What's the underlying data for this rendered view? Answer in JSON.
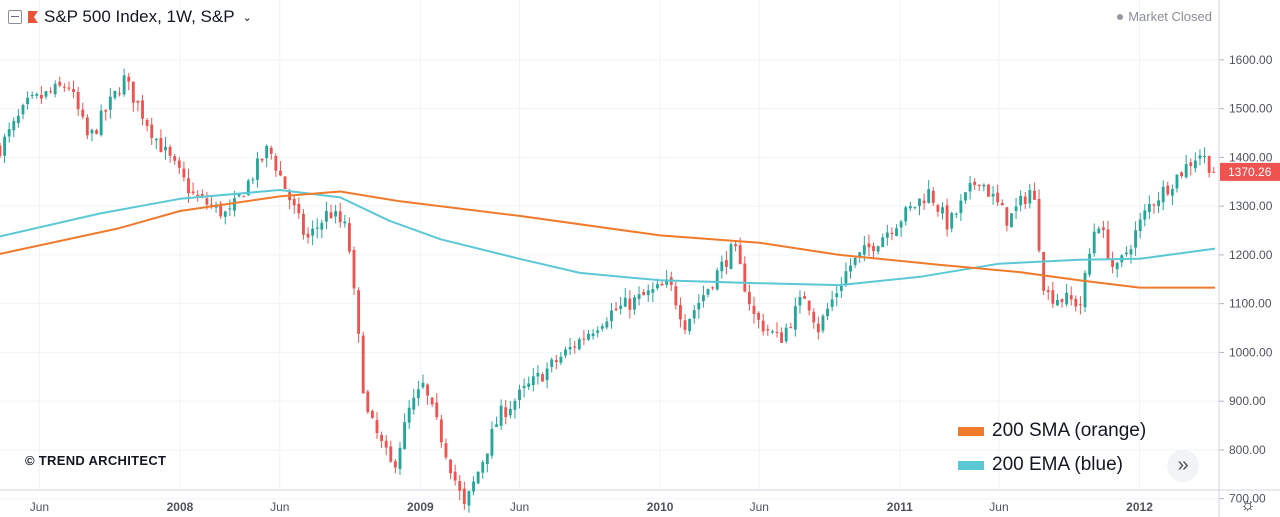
{
  "header": {
    "symbol_title": "S&P 500 Index, 1W, S&P",
    "chevron": "⌄"
  },
  "status": {
    "market_status": "Market Closed"
  },
  "watermark": "© TREND ARCHITECT",
  "legend": [
    {
      "label": "200 SMA (orange)",
      "color": "#f07a2b"
    },
    {
      "label": "200 EMA (blue)",
      "color": "#5bc8d5"
    }
  ],
  "controls": {
    "forward_icon": "»",
    "settings_icon": "☼"
  },
  "colors": {
    "up": "#26a69a",
    "down": "#ef5350",
    "sma": "#f07a2b",
    "ema": "#5bc8d5",
    "grid": "#f0f3fa",
    "price_label_bg": "#ef5350"
  },
  "chart_data": {
    "type": "candlestick",
    "title": "S&P 500 Index, 1W, S&P",
    "y_axis": {
      "ticks": [
        "700.00",
        "800.00",
        "900.00",
        "1000.00",
        "1100.00",
        "1200.00",
        "1300.00",
        "1400.00",
        "1500.00",
        "1600.00"
      ],
      "range": [
        650,
        1610
      ]
    },
    "x_axis": {
      "labels": [
        "Jun",
        "2008",
        "Jun",
        "2009",
        "Jun",
        "2010",
        "Jun",
        "2011",
        "Jun",
        "2012"
      ],
      "range": [
        "2007-04-02",
        "2012-05-01"
      ]
    },
    "x_label_dates": [
      "2007-06-01",
      "2008-01-01",
      "2008-06-01",
      "2009-01-01",
      "2009-06-01",
      "2010-01-01",
      "2010-06-01",
      "2011-01-01",
      "2011-06-01",
      "2012-01-01"
    ],
    "last_price": {
      "label": "1370.26",
      "value": 1370.26
    },
    "price_path": [
      [
        "2007-04-02",
        1420
      ],
      [
        "2007-05-15",
        1510
      ],
      [
        "2007-07-15",
        1550
      ],
      [
        "2007-08-15",
        1435
      ],
      [
        "2007-10-08",
        1560
      ],
      [
        "2007-11-25",
        1440
      ],
      [
        "2008-01-22",
        1320
      ],
      [
        "2008-03-15",
        1280
      ],
      [
        "2008-05-15",
        1420
      ],
      [
        "2008-07-12",
        1230
      ],
      [
        "2008-08-15",
        1290
      ],
      [
        "2008-09-12",
        1250
      ],
      [
        "2008-10-10",
        880
      ],
      [
        "2008-11-20",
        760
      ],
      [
        "2008-12-15",
        880
      ],
      [
        "2009-01-05",
        930
      ],
      [
        "2009-02-01",
        830
      ],
      [
        "2009-03-09",
        680
      ],
      [
        "2009-05-01",
        870
      ],
      [
        "2009-06-15",
        930
      ],
      [
        "2009-08-15",
        1005
      ],
      [
        "2009-10-15",
        1080
      ],
      [
        "2010-01-15",
        1140
      ],
      [
        "2010-02-08",
        1060
      ],
      [
        "2010-04-23",
        1215
      ],
      [
        "2010-05-25",
        1070
      ],
      [
        "2010-07-02",
        1025
      ],
      [
        "2010-08-10",
        1120
      ],
      [
        "2010-08-30",
        1050
      ],
      [
        "2010-10-15",
        1175
      ],
      [
        "2011-02-15",
        1330
      ],
      [
        "2011-03-16",
        1260
      ],
      [
        "2011-05-01",
        1360
      ],
      [
        "2011-06-15",
        1270
      ],
      [
        "2011-07-22",
        1340
      ],
      [
        "2011-08-10",
        1120
      ],
      [
        "2011-10-03",
        1100
      ],
      [
        "2011-10-28",
        1280
      ],
      [
        "2011-11-25",
        1160
      ],
      [
        "2012-01-15",
        1300
      ],
      [
        "2012-04-01",
        1410
      ],
      [
        "2012-04-25",
        1370.26
      ]
    ],
    "sma_200": [
      [
        "2007-04-02",
        1202
      ],
      [
        "2007-10-01",
        1255
      ],
      [
        "2008-01-01",
        1290
      ],
      [
        "2008-06-01",
        1320
      ],
      [
        "2008-09-01",
        1330
      ],
      [
        "2008-12-01",
        1310
      ],
      [
        "2009-06-01",
        1280
      ],
      [
        "2010-01-01",
        1240
      ],
      [
        "2010-06-01",
        1225
      ],
      [
        "2010-10-01",
        1200
      ],
      [
        "2011-03-01",
        1180
      ],
      [
        "2011-07-01",
        1165
      ],
      [
        "2011-10-01",
        1148
      ],
      [
        "2012-01-01",
        1133
      ],
      [
        "2012-04-25",
        1133
      ]
    ],
    "ema_200": [
      [
        "2007-04-02",
        1238
      ],
      [
        "2007-09-01",
        1285
      ],
      [
        "2008-01-01",
        1315
      ],
      [
        "2008-06-01",
        1333
      ],
      [
        "2008-09-01",
        1318
      ],
      [
        "2008-11-15",
        1270
      ],
      [
        "2009-02-01",
        1232
      ],
      [
        "2009-06-01",
        1192
      ],
      [
        "2009-09-01",
        1163
      ],
      [
        "2010-01-01",
        1148
      ],
      [
        "2010-06-01",
        1142
      ],
      [
        "2010-10-01",
        1138
      ],
      [
        "2011-02-01",
        1155
      ],
      [
        "2011-06-01",
        1182
      ],
      [
        "2011-10-01",
        1190
      ],
      [
        "2012-01-01",
        1192
      ],
      [
        "2012-04-25",
        1213
      ]
    ]
  }
}
